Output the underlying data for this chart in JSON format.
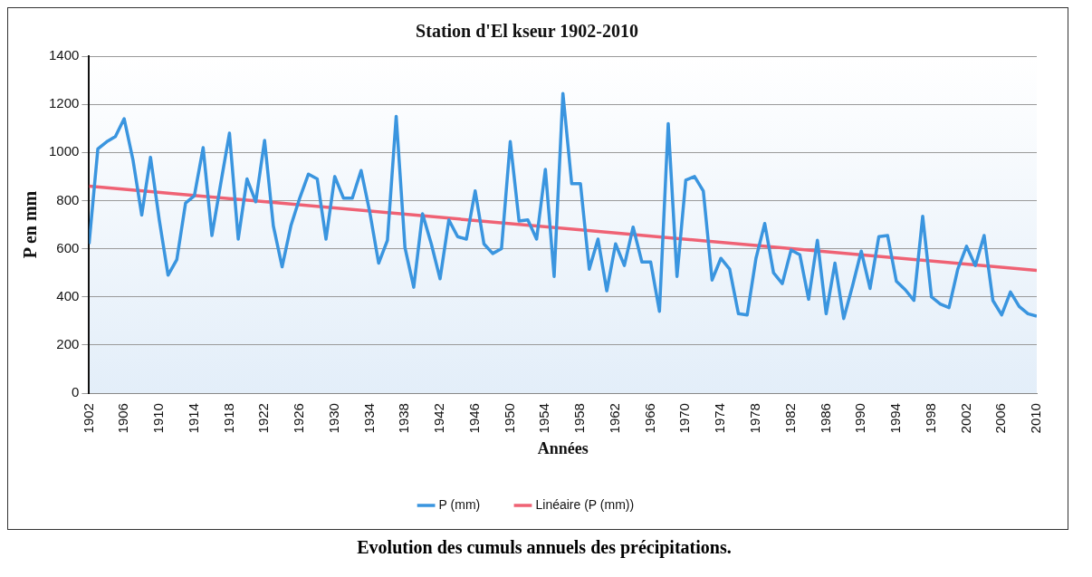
{
  "chart_data": {
    "type": "line",
    "title": "Station d'El kseur 1902-2010",
    "xlabel": "Années",
    "ylabel": "P en mm",
    "annotations": [
      "Evolution des cumuls annuels des précipitations."
    ],
    "x": [
      1902,
      1903,
      1904,
      1905,
      1906,
      1907,
      1908,
      1909,
      1910,
      1911,
      1912,
      1913,
      1914,
      1915,
      1916,
      1917,
      1918,
      1919,
      1920,
      1921,
      1922,
      1923,
      1924,
      1925,
      1926,
      1927,
      1928,
      1929,
      1930,
      1931,
      1932,
      1933,
      1934,
      1935,
      1936,
      1937,
      1938,
      1939,
      1940,
      1941,
      1942,
      1943,
      1944,
      1945,
      1946,
      1947,
      1948,
      1949,
      1950,
      1951,
      1952,
      1953,
      1954,
      1955,
      1956,
      1957,
      1958,
      1959,
      1960,
      1961,
      1962,
      1963,
      1964,
      1965,
      1966,
      1967,
      1968,
      1969,
      1970,
      1971,
      1972,
      1973,
      1974,
      1975,
      1976,
      1977,
      1978,
      1979,
      1980,
      1981,
      1982,
      1983,
      1984,
      1985,
      1986,
      1987,
      1988,
      1989,
      1990,
      1991,
      1992,
      1993,
      1994,
      1995,
      1996,
      1997,
      1998,
      1999,
      2000,
      2001,
      2002,
      2003,
      2004,
      2005,
      2006,
      2007,
      2008,
      2009,
      2010
    ],
    "series": [
      {
        "name": "P (mm)",
        "color": "#3a95df",
        "values": [
          620,
          1015,
          1044,
          1066,
          1140,
          970,
          740,
          980,
          720,
          490,
          555,
          790,
          820,
          1020,
          655,
          870,
          1080,
          640,
          890,
          795,
          1050,
          695,
          525,
          695,
          810,
          910,
          890,
          640,
          900,
          810,
          810,
          925,
          750,
          540,
          635,
          1150,
          605,
          440,
          745,
          620,
          475,
          720,
          650,
          640,
          840,
          620,
          580,
          600,
          1045,
          715,
          720,
          640,
          930,
          485,
          1245,
          870,
          870,
          515,
          640,
          425,
          620,
          530,
          690,
          545,
          545,
          340,
          1120,
          485,
          885,
          900,
          840,
          470,
          560,
          515,
          330,
          325,
          560,
          705,
          500,
          455,
          595,
          575,
          390,
          635,
          330,
          540,
          310,
          445,
          590,
          435,
          650,
          655,
          465,
          430,
          385,
          735,
          400,
          370,
          355,
          515,
          610,
          530,
          655,
          385,
          325,
          420,
          360,
          330,
          320
        ]
      },
      {
        "name": "Linéaire (P (mm))",
        "type": "line",
        "color": "#ef6274",
        "x": [
          1902,
          2010
        ],
        "values": [
          860,
          510
        ]
      }
    ],
    "xlim": [
      1902,
      2010
    ],
    "xticks": [
      1902,
      1906,
      1910,
      1914,
      1918,
      1922,
      1926,
      1930,
      1934,
      1938,
      1942,
      1946,
      1950,
      1954,
      1958,
      1962,
      1966,
      1970,
      1974,
      1978,
      1982,
      1986,
      1990,
      1994,
      1998,
      2002,
      2006,
      2010
    ],
    "ylim": [
      0,
      1400
    ],
    "yticks": [
      0,
      200,
      400,
      600,
      800,
      1000,
      1200,
      1400
    ],
    "grid": "y",
    "legend": "bottom",
    "marker": "none",
    "line_style": "solid"
  }
}
